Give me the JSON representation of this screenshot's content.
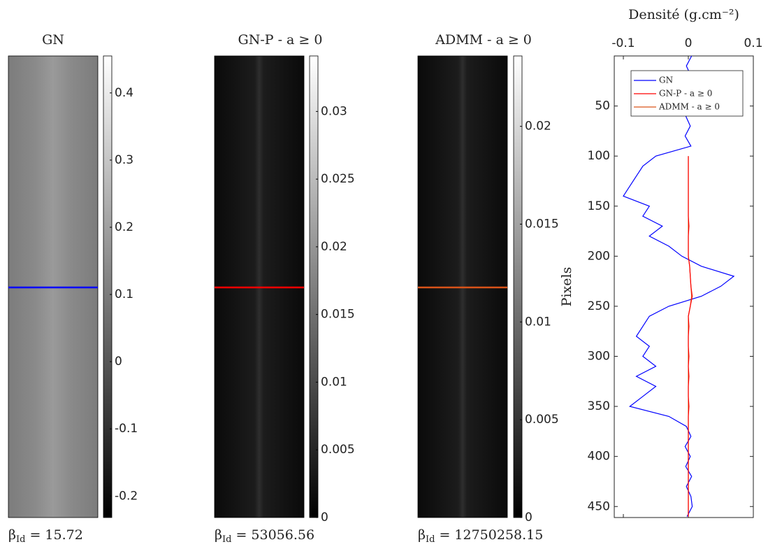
{
  "chart_data": [
    {
      "type": "image",
      "title": "GN",
      "note": {
        "symbol": "β",
        "subscript": "Id",
        "text": "= 15.72"
      },
      "clim": [
        -0.232,
        0.455
      ],
      "cticks": [
        -0.2,
        -0.1,
        0,
        0.1,
        0.2,
        0.3,
        0.4
      ],
      "line_color": "#0000ff"
    },
    {
      "type": "image",
      "title": "GN-P - a ≥ 0",
      "note": {
        "symbol": "β",
        "subscript": "Id",
        "text": "= 53056.56"
      },
      "clim": [
        0,
        0.0341
      ],
      "cticks": [
        0,
        0.005,
        0.01,
        0.015,
        0.02,
        0.025,
        0.03
      ],
      "line_color": "#ff0000"
    },
    {
      "type": "image",
      "title": "ADMM - a ≥ 0",
      "note": {
        "symbol": "β",
        "subscript": "Id",
        "text": "= 12750258.15"
      },
      "clim": [
        0,
        0.0236
      ],
      "cticks": [
        0,
        0.005,
        0.01,
        0.015,
        0.02
      ],
      "line_color": "#d95319"
    },
    {
      "type": "line",
      "x_label": "Densité (g.cm⁻²)",
      "y_label": "Pixels",
      "xlim": [
        -0.114,
        0.1
      ],
      "xticks": [
        -0.1,
        0,
        0.1
      ],
      "ylim": [
        0,
        461
      ],
      "yticks": [
        50,
        100,
        150,
        200,
        250,
        300,
        350,
        400,
        450
      ],
      "y_reversed": true,
      "legend": "upper-left",
      "x": [
        0,
        10,
        20,
        30,
        40,
        50,
        60,
        70,
        80,
        90,
        100,
        110,
        120,
        130,
        140,
        150,
        160,
        170,
        180,
        190,
        200,
        210,
        220,
        230,
        240,
        250,
        260,
        270,
        280,
        290,
        300,
        310,
        320,
        330,
        340,
        350,
        360,
        370,
        380,
        390,
        400,
        410,
        420,
        430,
        440,
        450,
        460
      ],
      "series": [
        {
          "name": "GN",
          "color": "#0000ff",
          "values": [
            0.005,
            -0.003,
            0.004,
            -0.002,
            0.003,
            0,
            -0.004,
            0.003,
            -0.005,
            0.004,
            -0.05,
            -0.07,
            -0.08,
            -0.09,
            -0.1,
            -0.06,
            -0.07,
            -0.04,
            -0.06,
            -0.03,
            -0.01,
            0.02,
            0.07,
            0.05,
            0.02,
            -0.03,
            -0.06,
            -0.07,
            -0.08,
            -0.06,
            -0.07,
            -0.05,
            -0.08,
            -0.05,
            -0.07,
            -0.09,
            -0.03,
            -0.003,
            0.004,
            -0.005,
            0.003,
            -0.004,
            0.005,
            -0.003,
            0.004,
            0.006,
            -0.002
          ]
        },
        {
          "name": "ADMM - a ≥ 0",
          "color": "#d95319",
          "values": [
            null,
            null,
            null,
            null,
            null,
            null,
            null,
            null,
            null,
            null,
            0,
            0,
            0,
            0,
            0,
            0,
            0,
            0,
            0,
            0,
            0,
            0.002,
            0.003,
            0.004,
            0.005,
            0.003,
            0,
            0,
            0,
            0,
            0,
            0,
            0,
            0,
            0,
            0,
            0,
            0,
            0,
            0,
            0,
            0,
            0,
            0,
            0,
            0,
            0
          ]
        },
        {
          "name": "GN-P - a ≥ 0",
          "color": "#ff0000",
          "values": [
            null,
            null,
            null,
            null,
            null,
            null,
            null,
            null,
            null,
            null,
            0,
            0,
            0,
            0,
            0,
            0,
            0,
            0.001,
            0,
            0,
            0,
            0.002,
            0.003,
            0.004,
            0.006,
            0.003,
            0,
            0.001,
            0,
            0,
            0.001,
            0,
            0.001,
            0,
            0,
            0.001,
            0,
            0,
            0,
            0,
            0,
            0,
            0,
            0,
            0,
            0,
            0
          ]
        }
      ]
    }
  ]
}
